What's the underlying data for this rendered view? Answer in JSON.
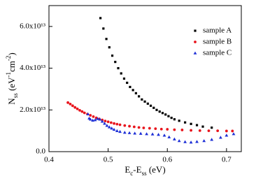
{
  "chart_data": {
    "type": "scatter",
    "x_label": [
      "E",
      "c",
      "-E",
      "ss",
      " (eV)"
    ],
    "y_label": [
      "N",
      "ss",
      " (eV",
      "-1",
      "cm",
      "-2",
      ")"
    ],
    "xlim": [
      0.4,
      0.725
    ],
    "ylim": [
      0,
      70000000000000.0
    ],
    "xticks": [
      0.4,
      0.5,
      0.6,
      0.7
    ],
    "yticks": [
      {
        "value": 0,
        "label": "0.0"
      },
      {
        "value": 20000000000000.0,
        "label": "2.0x10¹³"
      },
      {
        "value": 40000000000000.0,
        "label": "4.0x10¹³"
      },
      {
        "value": 60000000000000.0,
        "label": "6.0x10¹³"
      }
    ],
    "grid": false,
    "legend": "upper right",
    "series": [
      {
        "name": "sample A",
        "color": "#000000",
        "marker": "square",
        "x": [
          0.487,
          0.492,
          0.497,
          0.502,
          0.507,
          0.512,
          0.517,
          0.522,
          0.527,
          0.532,
          0.537,
          0.542,
          0.547,
          0.552,
          0.557,
          0.562,
          0.567,
          0.572,
          0.577,
          0.582,
          0.587,
          0.592,
          0.597,
          0.602,
          0.607,
          0.612,
          0.62,
          0.63,
          0.64,
          0.65,
          0.66,
          0.675
        ],
        "values": [
          64000000000000.0,
          59000000000000.0,
          54000000000000.0,
          50000000000000.0,
          46000000000000.0,
          43000000000000.0,
          40000000000000.0,
          37500000000000.0,
          35000000000000.0,
          33000000000000.0,
          31000000000000.0,
          29500000000000.0,
          28000000000000.0,
          26500000000000.0,
          25000000000000.0,
          24000000000000.0,
          23000000000000.0,
          22000000000000.0,
          21000000000000.0,
          20000000000000.0,
          19200000000000.0,
          18500000000000.0,
          17800000000000.0,
          17000000000000.0,
          16200000000000.0,
          15500000000000.0,
          14800000000000.0,
          14000000000000.0,
          13300000000000.0,
          12700000000000.0,
          12000000000000.0,
          11500000000000.0
        ]
      },
      {
        "name": "sample B",
        "color": "#e8141c",
        "marker": "circle",
        "x": [
          0.432,
          0.436,
          0.44,
          0.444,
          0.448,
          0.452,
          0.456,
          0.46,
          0.465,
          0.47,
          0.475,
          0.48,
          0.485,
          0.49,
          0.495,
          0.5,
          0.505,
          0.51,
          0.515,
          0.52,
          0.528,
          0.536,
          0.544,
          0.552,
          0.56,
          0.57,
          0.58,
          0.59,
          0.6,
          0.612,
          0.625,
          0.64,
          0.655,
          0.67,
          0.685,
          0.7,
          0.71
        ],
        "values": [
          23500000000000.0,
          22800000000000.0,
          22000000000000.0,
          21200000000000.0,
          20500000000000.0,
          19800000000000.0,
          19200000000000.0,
          18600000000000.0,
          18000000000000.0,
          17400000000000.0,
          16800000000000.0,
          16200000000000.0,
          15700000000000.0,
          15200000000000.0,
          14700000000000.0,
          14300000000000.0,
          13900000000000.0,
          13500000000000.0,
          13200000000000.0,
          12900000000000.0,
          12500000000000.0,
          12200000000000.0,
          11900000000000.0,
          11600000000000.0,
          11400000000000.0,
          11200000000000.0,
          11000000000000.0,
          10800000000000.0,
          10700000000000.0,
          10500000000000.0,
          10400000000000.0,
          10200000000000.0,
          10100000000000.0,
          10000000000000.0,
          10000000000000.0,
          9900000000000.0,
          9900000000000.0
        ]
      },
      {
        "name": "sample C",
        "color": "#1d2fd6",
        "marker": "triangle",
        "x": [
          0.466,
          0.468,
          0.47,
          0.474,
          0.478,
          0.482,
          0.486,
          0.49,
          0.494,
          0.498,
          0.502,
          0.506,
          0.51,
          0.515,
          0.52,
          0.528,
          0.536,
          0.545,
          0.555,
          0.565,
          0.575,
          0.585,
          0.595,
          0.603,
          0.612,
          0.62,
          0.63,
          0.64,
          0.65,
          0.662,
          0.675,
          0.69,
          0.7,
          0.712
        ],
        "values": [
          18000000000000.0,
          16000000000000.0,
          15500000000000.0,
          15000000000000.0,
          15200000000000.0,
          15800000000000.0,
          15500000000000.0,
          14500000000000.0,
          13500000000000.0,
          12500000000000.0,
          11800000000000.0,
          11200000000000.0,
          10600000000000.0,
          10000000000000.0,
          9600000000000.0,
          9200000000000.0,
          9000000000000.0,
          8800000000000.0,
          8700000000000.0,
          8500000000000.0,
          8400000000000.0,
          8200000000000.0,
          7800000000000.0,
          7000000000000.0,
          6000000000000.0,
          5200000000000.0,
          4700000000000.0,
          4500000000000.0,
          4800000000000.0,
          5200000000000.0,
          5800000000000.0,
          6800000000000.0,
          7800000000000.0,
          8500000000000.0
        ]
      }
    ]
  }
}
